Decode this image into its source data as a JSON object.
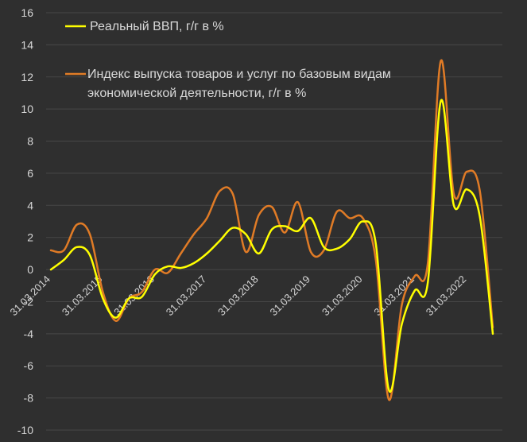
{
  "chart_data": {
    "type": "line",
    "ylim": [
      -10,
      16
    ],
    "y_ticks": [
      "16",
      "14",
      "12",
      "10",
      "8",
      "6",
      "4",
      "2",
      "0",
      "-2",
      "-4",
      "-6",
      "-8",
      "-10"
    ],
    "x_tick_labels": [
      "31.03.2014",
      "31.03.2015",
      "31.03.2016",
      "31.03.2017",
      "31.03.2018",
      "31.03.2019",
      "31.03.2020",
      "31.03.2021",
      "31.03.2022"
    ],
    "grid": "horizontal",
    "legend_position": "top-left",
    "x": [
      2014.0,
      2014.25,
      2014.5,
      2014.75,
      2015.0,
      2015.25,
      2015.5,
      2015.75,
      2016.0,
      2016.25,
      2016.5,
      2016.75,
      2017.0,
      2017.25,
      2017.5,
      2017.75,
      2018.0,
      2018.25,
      2018.5,
      2018.75,
      2019.0,
      2019.25,
      2019.5,
      2019.75,
      2020.0,
      2020.25,
      2020.5,
      2020.75,
      2021.0,
      2021.25,
      2021.5,
      2021.75,
      2022.0,
      2022.25,
      2022.5
    ],
    "series": [
      {
        "name": "Реальный ВВП, г/г в %",
        "color": "#ffff00",
        "values": [
          0.0,
          0.6,
          1.4,
          0.9,
          -1.8,
          -3.0,
          -1.8,
          -1.7,
          -0.3,
          0.2,
          0.1,
          0.4,
          1.0,
          1.8,
          2.6,
          2.2,
          1.0,
          2.5,
          2.7,
          2.4,
          3.2,
          1.4,
          1.3,
          1.9,
          3.0,
          1.6,
          -7.5,
          -3.4,
          -1.3,
          -0.8,
          10.5,
          4.0,
          5.0,
          3.3,
          -4.0
        ]
      },
      {
        "name": "Индекс выпуска товаров и услуг по базовым видам экономической деятельности, г/г в %",
        "color": "#e07b26",
        "values": [
          1.2,
          1.2,
          2.8,
          2.2,
          -1.4,
          -3.2,
          -1.8,
          -1.4,
          0.0,
          -0.2,
          1.0,
          2.2,
          3.2,
          4.9,
          4.7,
          1.1,
          3.4,
          3.9,
          2.3,
          4.2,
          1.1,
          1.2,
          3.6,
          3.2,
          3.2,
          0.6,
          -8.1,
          -2.2,
          -0.4,
          0.4,
          13.0,
          4.7,
          6.1,
          4.9,
          -3.6
        ]
      }
    ]
  }
}
